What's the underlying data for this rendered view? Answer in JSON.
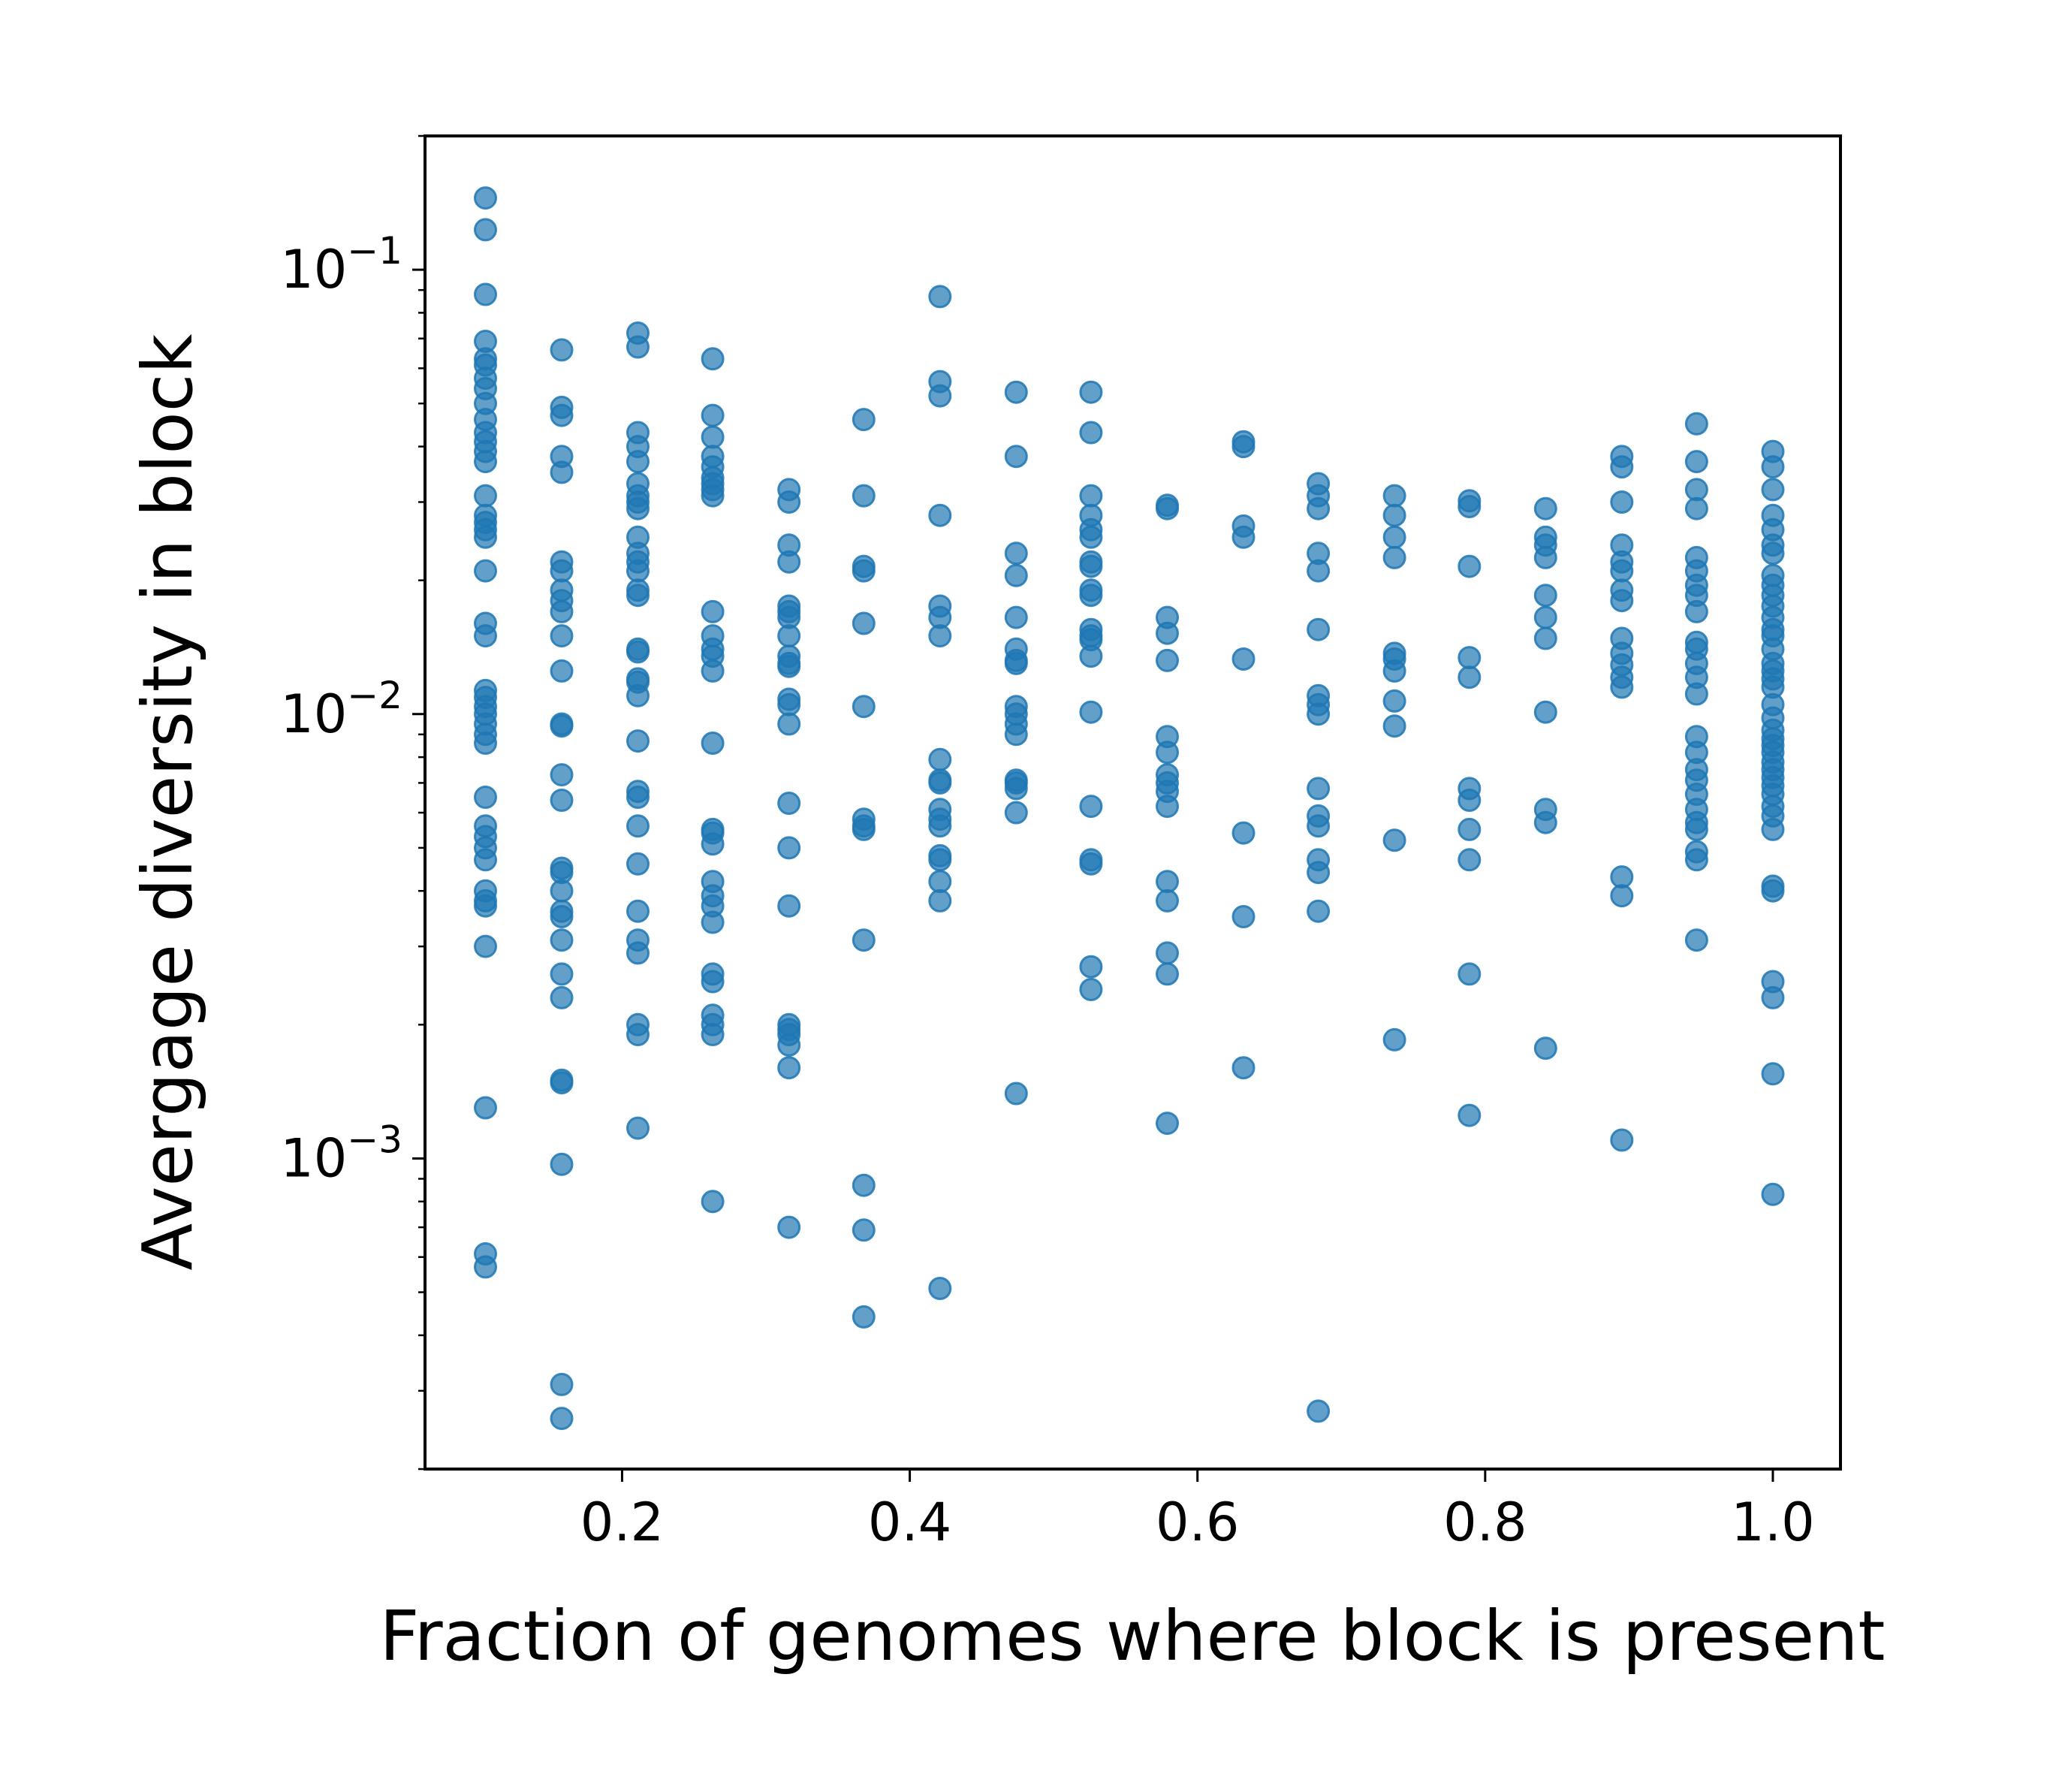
{
  "chart_data": {
    "type": "scatter",
    "title": "",
    "xlabel": "Fraction of genomes where block is present",
    "ylabel": "Avergage diversity in block",
    "xlim": [
      0.063,
      1.047
    ],
    "ylim": [
      0.0002,
      0.2
    ],
    "yscale": "log",
    "grid": false,
    "legend": "none",
    "marker_color": "#1f77b4",
    "x_ticks": [
      {
        "value": 0.2,
        "label": "0.2"
      },
      {
        "value": 0.4,
        "label": "0.4"
      },
      {
        "value": 0.6,
        "label": "0.6"
      },
      {
        "value": 0.8,
        "label": "0.8"
      },
      {
        "value": 1.0,
        "label": "1.0"
      }
    ],
    "y_ticks": [
      {
        "value": 0.001,
        "base": "10",
        "exp": "−3"
      },
      {
        "value": 0.01,
        "base": "10",
        "exp": "−2"
      },
      {
        "value": 0.1,
        "base": "10",
        "exp": "−1"
      }
    ],
    "columns": [
      {
        "x": 0.105,
        "y": [
          0.145,
          0.123,
          0.088,
          0.069,
          0.063,
          0.061,
          0.057,
          0.054,
          0.05,
          0.046,
          0.043,
          0.041,
          0.039,
          0.037,
          0.031,
          0.028,
          0.027,
          0.026,
          0.025,
          0.021,
          0.016,
          0.015,
          0.0113,
          0.0109,
          0.0104,
          0.01,
          0.0095,
          0.009,
          0.0086,
          0.0065,
          0.0056,
          0.0053,
          0.005,
          0.0047,
          0.004,
          0.0038,
          0.0037,
          0.003,
          0.0013,
          0.00061,
          0.00057
        ]
      },
      {
        "x": 0.158,
        "y": [
          0.066,
          0.049,
          0.047,
          0.038,
          0.035,
          0.022,
          0.021,
          0.019,
          0.018,
          0.017,
          0.015,
          0.0125,
          0.0095,
          0.0094,
          0.0073,
          0.0064,
          0.0045,
          0.0044,
          0.004,
          0.0036,
          0.0035,
          0.0031,
          0.0026,
          0.0023,
          0.0015,
          0.00148,
          0.00097,
          0.00031,
          0.00026
        ]
      },
      {
        "x": 0.211,
        "y": [
          0.072,
          0.067,
          0.043,
          0.04,
          0.037,
          0.033,
          0.031,
          0.03,
          0.029,
          0.025,
          0.023,
          0.022,
          0.021,
          0.019,
          0.0185,
          0.014,
          0.0138,
          0.012,
          0.0118,
          0.011,
          0.0087,
          0.0067,
          0.0065,
          0.0056,
          0.0046,
          0.0036,
          0.0031,
          0.0029,
          0.002,
          0.0019,
          0.00117
        ]
      },
      {
        "x": 0.263,
        "y": [
          0.063,
          0.047,
          0.042,
          0.038,
          0.036,
          0.034,
          0.033,
          0.032,
          0.031,
          0.017,
          0.015,
          0.014,
          0.0135,
          0.0125,
          0.0086,
          0.0055,
          0.0054,
          0.0051,
          0.0042,
          0.0039,
          0.0037,
          0.0034,
          0.0026,
          0.0025,
          0.0021,
          0.002,
          0.0019,
          0.0008
        ]
      },
      {
        "x": 0.316,
        "y": [
          0.032,
          0.03,
          0.024,
          0.022,
          0.0175,
          0.017,
          0.0165,
          0.015,
          0.0135,
          0.013,
          0.0128,
          0.0108,
          0.0105,
          0.0095,
          0.0063,
          0.005,
          0.0037,
          0.002,
          0.00195,
          0.0019,
          0.0018,
          0.0016,
          0.0007
        ]
      },
      {
        "x": 0.368,
        "y": [
          0.046,
          0.031,
          0.0215,
          0.021,
          0.016,
          0.0104,
          0.0058,
          0.0056,
          0.0055,
          0.0031,
          0.00087,
          0.00069,
          0.00044
        ]
      },
      {
        "x": 0.421,
        "y": [
          0.087,
          0.056,
          0.052,
          0.028,
          0.0175,
          0.0165,
          0.015,
          0.0079,
          0.0071,
          0.007,
          0.0061,
          0.0058,
          0.0056,
          0.0048,
          0.0047,
          0.0042,
          0.0038,
          0.00051
        ]
      },
      {
        "x": 0.474,
        "y": [
          0.053,
          0.038,
          0.023,
          0.0205,
          0.0165,
          0.014,
          0.0132,
          0.013,
          0.0104,
          0.01,
          0.0095,
          0.009,
          0.0071,
          0.007,
          0.0068,
          0.006,
          0.0014
        ]
      },
      {
        "x": 0.526,
        "y": [
          0.053,
          0.043,
          0.031,
          0.028,
          0.026,
          0.025,
          0.022,
          0.0215,
          0.019,
          0.0185,
          0.0155,
          0.015,
          0.0147,
          0.0135,
          0.0101,
          0.0062,
          0.0047,
          0.0046,
          0.0027,
          0.0024
        ]
      },
      {
        "x": 0.579,
        "y": [
          0.0295,
          0.029,
          0.0165,
          0.0152,
          0.0132,
          0.0089,
          0.0082,
          0.0073,
          0.007,
          0.0067,
          0.0062,
          0.0042,
          0.0038,
          0.0029,
          0.0026,
          0.0012
        ]
      },
      {
        "x": 0.632,
        "y": [
          0.041,
          0.04,
          0.0265,
          0.025,
          0.0133,
          0.0054,
          0.0035,
          0.0016
        ]
      },
      {
        "x": 0.684,
        "y": [
          0.033,
          0.031,
          0.029,
          0.023,
          0.021,
          0.0155,
          0.011,
          0.0105,
          0.01,
          0.0068,
          0.0059,
          0.0056,
          0.0047,
          0.0044,
          0.0036,
          0.00027
        ]
      },
      {
        "x": 0.737,
        "y": [
          0.031,
          0.028,
          0.025,
          0.0225,
          0.0137,
          0.0133,
          0.0125,
          0.0107,
          0.0094,
          0.0052,
          0.00185
        ]
      },
      {
        "x": 0.789,
        "y": [
          0.0302,
          0.0293,
          0.0215,
          0.0134,
          0.0121,
          0.0068,
          0.0064,
          0.0055,
          0.0047,
          0.0026,
          0.00125
        ]
      },
      {
        "x": 0.842,
        "y": [
          0.029,
          0.025,
          0.024,
          0.0225,
          0.0185,
          0.0165,
          0.0148,
          0.0101,
          0.0061,
          0.0057,
          0.00177
        ]
      },
      {
        "x": 0.895,
        "y": [
          0.038,
          0.036,
          0.03,
          0.024,
          0.022,
          0.021,
          0.019,
          0.018,
          0.0148,
          0.0137,
          0.0129,
          0.0121,
          0.0115,
          0.0043,
          0.0039,
          0.0011
        ]
      },
      {
        "x": 0.947,
        "y": [
          0.045,
          0.037,
          0.032,
          0.029,
          0.0225,
          0.021,
          0.0195,
          0.0185,
          0.017,
          0.0145,
          0.014,
          0.013,
          0.0121,
          0.0111,
          0.0089,
          0.0082,
          0.0075,
          0.0071,
          0.0066,
          0.0061,
          0.0057,
          0.0055,
          0.0049,
          0.0047,
          0.0031
        ]
      },
      {
        "x": 1.0,
        "y": [
          0.039,
          0.036,
          0.032,
          0.028,
          0.026,
          0.024,
          0.023,
          0.0205,
          0.0195,
          0.0185,
          0.0175,
          0.0165,
          0.0155,
          0.015,
          0.014,
          0.013,
          0.0125,
          0.012,
          0.0115,
          0.0105,
          0.0098,
          0.0092,
          0.0088,
          0.0085,
          0.0082,
          0.0078,
          0.0075,
          0.0072,
          0.0069,
          0.0066,
          0.0062,
          0.0059,
          0.0055,
          0.0041,
          0.004,
          0.0025,
          0.0023,
          0.00155,
          0.00083
        ]
      }
    ]
  }
}
